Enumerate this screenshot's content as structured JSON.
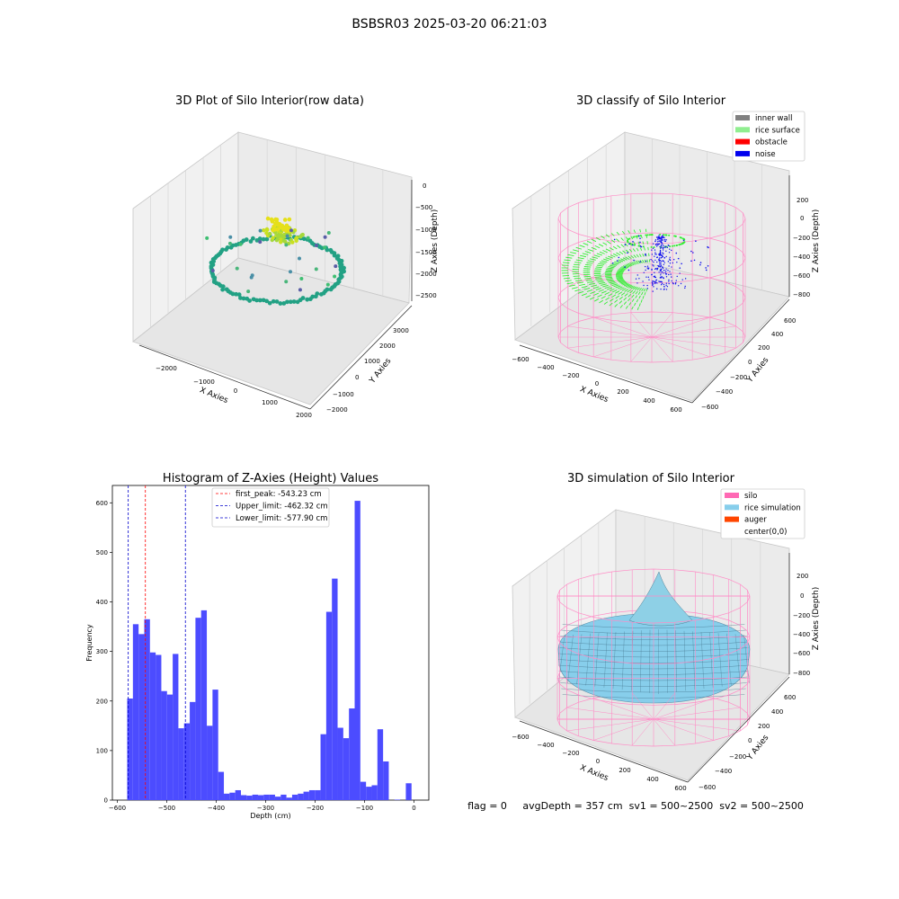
{
  "suptitle": "BSBSR03 2025-03-20 06:21:03",
  "panels": {
    "raw": {
      "title": "3D Plot of Silo Interior(row data)",
      "xlabel": "X Axies",
      "ylabel": "Y Axies",
      "zlabel": "Z Axies (Depth)",
      "xticks": [
        "−2000",
        "−1000",
        "0",
        "1000",
        "2000"
      ],
      "yticks": [
        "−2000",
        "−1000",
        "0",
        "1000",
        "2000",
        "3000"
      ],
      "zticks": [
        "0",
        "−500",
        "−1000",
        "−1500",
        "−2000",
        "−2500"
      ]
    },
    "classify": {
      "title": "3D classify of Silo Interior",
      "xlabel": "X Axies",
      "ylabel": "Y Axies",
      "zlabel": "Z Axies (Depth)",
      "xticks": [
        "−600",
        "−400",
        "−200",
        "0",
        "200",
        "400",
        "600"
      ],
      "yticks": [
        "−600",
        "−400",
        "−200",
        "0",
        "200",
        "400",
        "600"
      ],
      "zticks": [
        "200",
        "0",
        "−200",
        "−400",
        "−600",
        "−800"
      ],
      "legend": [
        {
          "label": "inner wall",
          "color": "#808080"
        },
        {
          "label": "rice surface",
          "color": "#90ee90"
        },
        {
          "label": "obstacle",
          "color": "#ff0000"
        },
        {
          "label": "noise",
          "color": "#0000ee"
        }
      ]
    },
    "simulation": {
      "title": "3D simulation of Silo Interior",
      "xlabel": "X Axies",
      "ylabel": "Y Axies",
      "zlabel": "Z Axies (Depth)",
      "xticks": [
        "−600",
        "−400",
        "−200",
        "0",
        "200",
        "400",
        "600"
      ],
      "yticks": [
        "−600",
        "−400",
        "−200",
        "0",
        "200",
        "400",
        "600"
      ],
      "zticks": [
        "200",
        "0",
        "−200",
        "−400",
        "−600",
        "−800"
      ],
      "legend": [
        {
          "label": "silo",
          "color": "#ff69b4"
        },
        {
          "label": "rice simulation",
          "color": "#87ceeb"
        },
        {
          "label": "auger",
          "color": "#ff4500"
        },
        {
          "label": "center(0,0)",
          "color": ""
        }
      ]
    }
  },
  "status_line": "flag = 0     avgDepth = 357 cm  sv1 = 500~2500  sv2 = 500~2500",
  "colors": {
    "bars": "#4c4cff",
    "first_peak": "#ff0000",
    "limits": "#0000cc",
    "silo": "#ff8cc6",
    "rice_surface": "#33ee33",
    "noise": "#1010ee",
    "rice_simulation": "#87ceeb"
  },
  "chart_data": [
    {
      "type": "scatter",
      "title": "3D Plot of Silo Interior(row data)",
      "xlabel": "X Axies",
      "ylabel": "Y Axies",
      "zlabel": "Z Axies (Depth)",
      "xlim": [
        -2500,
        2000
      ],
      "ylim": [
        -2000,
        3500
      ],
      "zlim": [
        -2800,
        100
      ],
      "projection": "3d"
    },
    {
      "type": "scatter",
      "title": "3D classify of Silo Interior",
      "xlabel": "X Axies",
      "ylabel": "Y Axies",
      "zlabel": "Z Axies (Depth)",
      "xlim": [
        -650,
        650
      ],
      "ylim": [
        -650,
        650
      ],
      "zlim": [
        -900,
        300
      ],
      "projection": "3d",
      "series": [
        {
          "name": "inner wall",
          "color": "#808080"
        },
        {
          "name": "rice surface",
          "color": "#90ee90"
        },
        {
          "name": "obstacle",
          "color": "#ff0000"
        },
        {
          "name": "noise",
          "color": "#0000ee"
        }
      ]
    },
    {
      "type": "bar",
      "title": "Histogram of Z-Axies (Height) Values",
      "xlabel": "Depth (cm)",
      "ylabel": "Frequency",
      "xlim": [
        -610,
        30
      ],
      "ylim": [
        0,
        635
      ],
      "xticks": [
        -600,
        -500,
        -400,
        -300,
        -200,
        -100,
        0
      ],
      "yticks": [
        0,
        100,
        200,
        300,
        400,
        500,
        600
      ],
      "bin_start": -580,
      "bin_width": 11.5,
      "values": [
        205,
        355,
        335,
        365,
        298,
        293,
        220,
        213,
        295,
        145,
        155,
        198,
        368,
        383,
        150,
        223,
        57,
        13,
        15,
        20,
        10,
        9,
        11,
        10,
        11,
        11,
        7,
        11,
        5,
        11,
        13,
        17,
        20,
        20,
        133,
        380,
        447,
        146,
        125,
        185,
        604,
        37,
        27,
        30,
        143,
        78,
        0,
        1,
        0,
        34
      ],
      "lines": [
        {
          "name": "first_peak: -543.23 cm",
          "x": -543.23,
          "color": "#ff0000"
        },
        {
          "name": "Upper_limit: -462.32 cm",
          "x": -462.32,
          "color": "#0000cc"
        },
        {
          "name": "Lower_limit: -577.90 cm",
          "x": -577.9,
          "color": "#0000cc"
        }
      ],
      "legend_position": "top-center"
    },
    {
      "type": "surface",
      "title": "3D simulation of Silo Interior",
      "xlabel": "X Axies",
      "ylabel": "Y Axies",
      "zlabel": "Z Axies (Depth)",
      "xlim": [
        -650,
        650
      ],
      "ylim": [
        -650,
        650
      ],
      "zlim": [
        -900,
        300
      ],
      "projection": "3d",
      "series": [
        {
          "name": "silo",
          "color": "#ff69b4"
        },
        {
          "name": "rice simulation",
          "color": "#87ceeb"
        },
        {
          "name": "auger",
          "color": "#ff4500"
        },
        {
          "name": "center(0,0)",
          "color": ""
        }
      ]
    }
  ]
}
